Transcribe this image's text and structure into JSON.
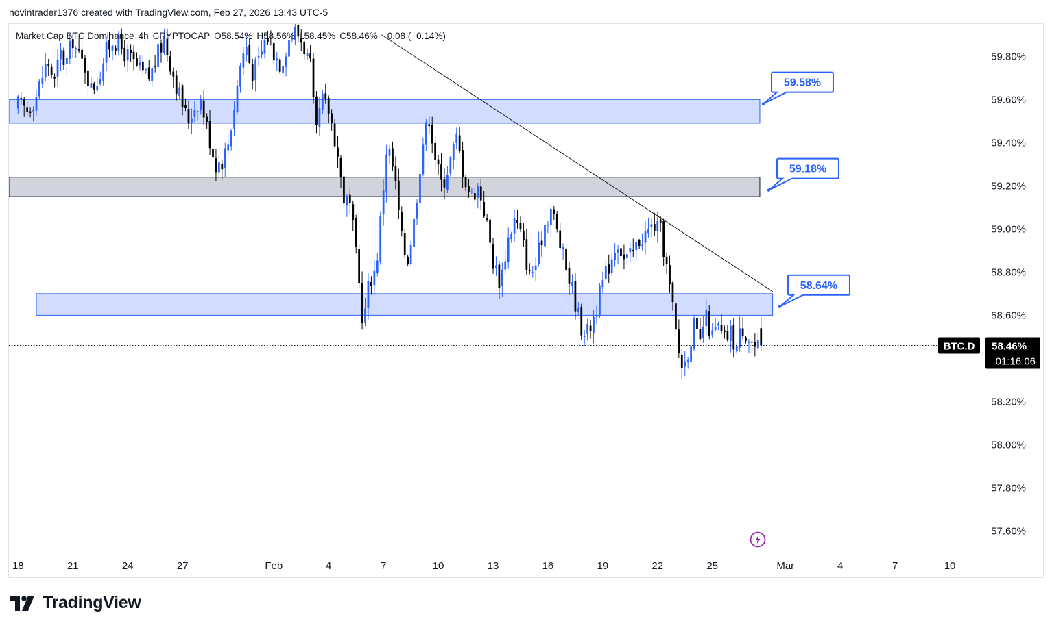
{
  "credit": "novintrader1376 created with TradingView.com, Feb 27, 2026 13:43 UTC-5",
  "symbol_line": {
    "name": "Market Cap BTC Dominance",
    "interval": "4h",
    "exchange": "CRYPTOCAP",
    "open": "O58.54%",
    "high": "H58.56%",
    "low": "L58.45%",
    "close": "C58.46%",
    "change": "−0.08 (−0.14%)"
  },
  "logo_text": "TradingView",
  "colors": {
    "up_candle": "#2962ff",
    "down_candle": "#000000",
    "zone_blue_fill": "#d1dcfe",
    "zone_blue_border": "#2962ff",
    "zone_gray_fill": "#d1d4dc",
    "zone_gray_border": "#131722",
    "trendline": "#131722",
    "callout_border": "#2962ff",
    "price_tag_bg": "#000000",
    "bolt": "#9c27b0"
  },
  "chart_data": {
    "type": "candlestick",
    "symbol": "BTC.D",
    "y_unit": "%",
    "ylim": [
      57.5,
      59.95
    ],
    "y_ticks": [
      "59.80%",
      "59.60%",
      "59.40%",
      "59.20%",
      "59.00%",
      "58.80%",
      "58.60%",
      "58.40%",
      "58.20%",
      "58.00%",
      "57.80%",
      "57.60%"
    ],
    "y_tick_values": [
      59.8,
      59.6,
      59.4,
      59.2,
      59.0,
      58.8,
      58.6,
      58.4,
      58.2,
      58.0,
      57.8,
      57.6
    ],
    "x_ticks": [
      {
        "label": "18",
        "day": 0
      },
      {
        "label": "21",
        "day": 3
      },
      {
        "label": "24",
        "day": 6
      },
      {
        "label": "27",
        "day": 9
      },
      {
        "label": "Feb",
        "day": 14
      },
      {
        "label": "4",
        "day": 17
      },
      {
        "label": "7",
        "day": 20
      },
      {
        "label": "10",
        "day": 23
      },
      {
        "label": "13",
        "day": 26
      },
      {
        "label": "16",
        "day": 29
      },
      {
        "label": "19",
        "day": 32
      },
      {
        "label": "22",
        "day": 35
      },
      {
        "label": "25",
        "day": 38
      },
      {
        "label": "Mar",
        "day": 42
      },
      {
        "label": "4",
        "day": 45
      },
      {
        "label": "7",
        "day": 48
      },
      {
        "label": "10",
        "day": 51
      }
    ],
    "x_range_days": [
      -0.5,
      52.5
    ],
    "last_candle_day": 40.75,
    "current_price": 58.46,
    "price_tag": {
      "symbol": "BTC.D",
      "price": "58.46%",
      "countdown": "01:16:06"
    },
    "close_path": [
      [
        0.0,
        59.58
      ],
      [
        0.5,
        59.55
      ],
      [
        1.0,
        59.62
      ],
      [
        1.3,
        59.7
      ],
      [
        1.6,
        59.78
      ],
      [
        2.0,
        59.68
      ],
      [
        2.3,
        59.82
      ],
      [
        2.6,
        59.76
      ],
      [
        3.0,
        59.88
      ],
      [
        3.3,
        59.8
      ],
      [
        3.7,
        59.75
      ],
      [
        4.0,
        59.65
      ],
      [
        4.4,
        59.7
      ],
      [
        4.8,
        59.82
      ],
      [
        5.2,
        59.88
      ],
      [
        5.6,
        59.84
      ],
      [
        6.0,
        59.8
      ],
      [
        6.4,
        59.76
      ],
      [
        6.8,
        59.72
      ],
      [
        7.2,
        59.7
      ],
      [
        7.6,
        59.8
      ],
      [
        8.0,
        59.88
      ],
      [
        8.4,
        59.75
      ],
      [
        8.7,
        59.66
      ],
      [
        9.0,
        59.58
      ],
      [
        9.3,
        59.5
      ],
      [
        9.6,
        59.56
      ],
      [
        10.0,
        59.6
      ],
      [
        10.4,
        59.45
      ],
      [
        10.8,
        59.3
      ],
      [
        11.2,
        59.32
      ],
      [
        11.5,
        59.4
      ],
      [
        11.8,
        59.55
      ],
      [
        12.2,
        59.78
      ],
      [
        12.5,
        59.85
      ],
      [
        12.8,
        59.72
      ],
      [
        13.2,
        59.78
      ],
      [
        13.6,
        59.9
      ],
      [
        14.0,
        59.82
      ],
      [
        14.4,
        59.76
      ],
      [
        14.8,
        59.88
      ],
      [
        15.2,
        59.92
      ],
      [
        15.6,
        59.86
      ],
      [
        16.0,
        59.75
      ],
      [
        16.3,
        59.42
      ],
      [
        16.6,
        59.6
      ],
      [
        17.0,
        59.55
      ],
      [
        17.4,
        59.4
      ],
      [
        17.8,
        59.15
      ],
      [
        18.2,
        59.1
      ],
      [
        18.6,
        58.8
      ],
      [
        18.9,
        58.55
      ],
      [
        19.2,
        58.75
      ],
      [
        19.6,
        58.82
      ],
      [
        19.9,
        59.1
      ],
      [
        20.2,
        59.4
      ],
      [
        20.6,
        59.25
      ],
      [
        21.0,
        58.95
      ],
      [
        21.3,
        58.85
      ],
      [
        21.7,
        59.05
      ],
      [
        22.1,
        59.38
      ],
      [
        22.5,
        59.52
      ],
      [
        22.9,
        59.3
      ],
      [
        23.2,
        59.2
      ],
      [
        23.6,
        59.3
      ],
      [
        24.0,
        59.42
      ],
      [
        24.4,
        59.25
      ],
      [
        24.8,
        59.15
      ],
      [
        25.2,
        59.2
      ],
      [
        25.6,
        59.05
      ],
      [
        26.0,
        58.85
      ],
      [
        26.4,
        58.75
      ],
      [
        26.8,
        58.95
      ],
      [
        27.2,
        59.05
      ],
      [
        27.6,
        58.95
      ],
      [
        28.0,
        58.78
      ],
      [
        28.4,
        58.85
      ],
      [
        28.8,
        59.02
      ],
      [
        29.2,
        59.1
      ],
      [
        29.6,
        58.95
      ],
      [
        30.0,
        58.82
      ],
      [
        30.4,
        58.7
      ],
      [
        30.8,
        58.55
      ],
      [
        31.2,
        58.52
      ],
      [
        31.6,
        58.62
      ],
      [
        32.0,
        58.75
      ],
      [
        32.4,
        58.85
      ],
      [
        32.8,
        58.95
      ],
      [
        33.2,
        58.85
      ],
      [
        33.6,
        58.88
      ],
      [
        34.0,
        58.95
      ],
      [
        34.4,
        58.98
      ],
      [
        34.8,
        59.02
      ],
      [
        35.2,
        58.98
      ],
      [
        35.5,
        58.82
      ],
      [
        35.8,
        58.65
      ],
      [
        36.1,
        58.45
      ],
      [
        36.4,
        58.35
      ],
      [
        36.7,
        58.45
      ],
      [
        37.0,
        58.55
      ],
      [
        37.3,
        58.45
      ],
      [
        37.6,
        58.6
      ],
      [
        38.0,
        58.5
      ],
      [
        38.3,
        58.55
      ],
      [
        38.6,
        58.48
      ],
      [
        39.0,
        58.52
      ],
      [
        39.3,
        58.44
      ],
      [
        39.6,
        58.55
      ],
      [
        40.0,
        58.5
      ],
      [
        40.4,
        58.44
      ],
      [
        40.75,
        58.46
      ]
    ],
    "zones": [
      {
        "name": "upper-resistance-zone",
        "day_start": -0.5,
        "day_end": 40.6,
        "price_low": 59.49,
        "price_high": 59.6,
        "style": "blue"
      },
      {
        "name": "middle-gray-zone",
        "day_start": -0.5,
        "day_end": 40.6,
        "price_low": 59.15,
        "price_high": 59.24,
        "style": "gray"
      },
      {
        "name": "lower-support-zone",
        "day_start": 1.0,
        "day_end": 41.3,
        "price_low": 58.6,
        "price_high": 58.7,
        "style": "blue"
      }
    ],
    "trendline": {
      "day_start": 19.9,
      "price_start": 59.9,
      "day_end": 41.3,
      "price_end": 58.71
    },
    "callouts": [
      {
        "label": "59.58%",
        "value": 59.58,
        "anchor_day": 40.6,
        "anchor_price": 59.58
      },
      {
        "label": "59.18%",
        "value": 59.18,
        "anchor_day": 40.9,
        "anchor_price": 59.18
      },
      {
        "label": "58.64%",
        "value": 58.64,
        "anchor_day": 41.5,
        "anchor_price": 58.64
      }
    ],
    "grid": false
  }
}
